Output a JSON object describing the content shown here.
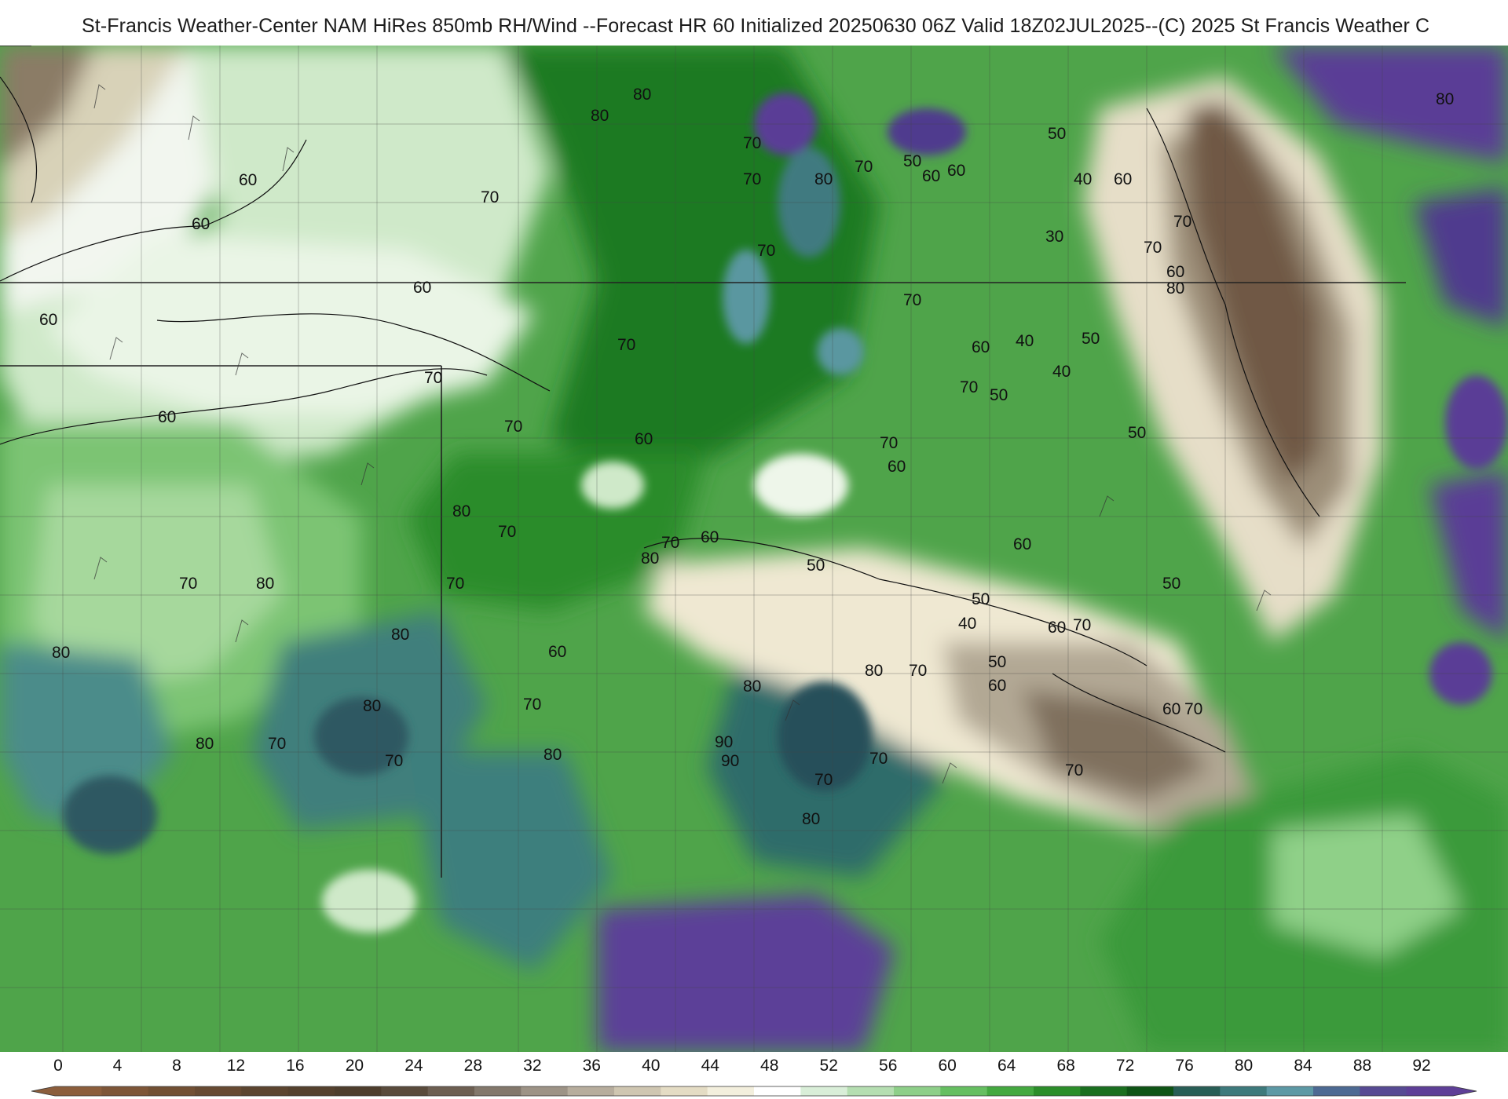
{
  "header": {
    "title": "St-Francis Weather-Center NAM HiRes 850mb RH/Wind  --Forecast HR 60 Initialized 20250630 06Z Valid 18Z02JUL2025--(C) 2025 St Francis Weather C"
  },
  "map": {
    "product": "850mb RH/Wind",
    "contour_labels": [
      "60",
      "60",
      "60",
      "60",
      "70",
      "80",
      "80",
      "70",
      "70",
      "70",
      "80",
      "50",
      "60",
      "60",
      "50",
      "40",
      "60",
      "30",
      "70",
      "80",
      "70",
      "70",
      "60",
      "40",
      "50",
      "40",
      "60",
      "80",
      "70",
      "50",
      "70",
      "50",
      "60",
      "70",
      "70",
      "70",
      "70",
      "60",
      "80",
      "70",
      "70",
      "80",
      "80",
      "70",
      "70",
      "60",
      "80",
      "60",
      "50",
      "50",
      "60",
      "40",
      "50",
      "60",
      "70",
      "80",
      "70",
      "50",
      "60",
      "60",
      "70",
      "80",
      "70",
      "80",
      "70",
      "80",
      "80",
      "70",
      "80",
      "90",
      "70",
      "70",
      "70",
      "80",
      "90",
      "60"
    ]
  },
  "legend": {
    "ticks": [
      "0",
      "4",
      "8",
      "12",
      "16",
      "20",
      "24",
      "28",
      "32",
      "36",
      "40",
      "44",
      "48",
      "52",
      "56",
      "60",
      "64",
      "68",
      "72",
      "76",
      "80",
      "84",
      "88",
      "92"
    ],
    "colors": [
      "#8c5e3c",
      "#7e5638",
      "#725034",
      "#674a32",
      "#5c4530",
      "#55412e",
      "#4e3e2d",
      "#5a4b3c",
      "#6d5f52",
      "#83786c",
      "#9d9386",
      "#b7ad9d",
      "#cfc6b1",
      "#e4dcc4",
      "#f3efdd",
      "#ffffff",
      "#d9eed8",
      "#b5deb1",
      "#8ecf89",
      "#66bf61",
      "#44a940",
      "#2c8e2a",
      "#1a6f1f",
      "#0f5416",
      "#285e56",
      "#3e7a7c",
      "#5d99a5",
      "#4d6a93",
      "#574a93",
      "#5e3f97"
    ]
  }
}
